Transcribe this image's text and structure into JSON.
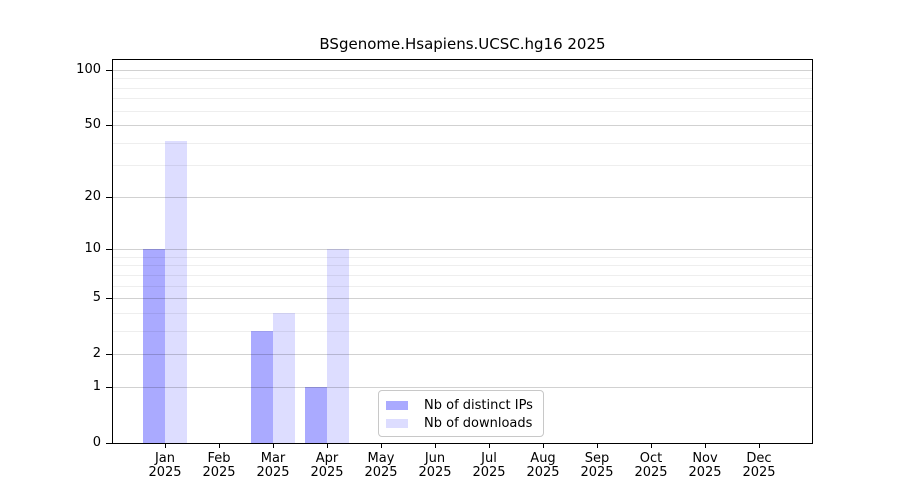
{
  "figure": {
    "title": "BSgenome.Hsapiens.UCSC.hg16 2025"
  },
  "chart_data": {
    "type": "bar",
    "title": "BSgenome.Hsapiens.UCSC.hg16 2025",
    "xlabel": "",
    "ylabel": "",
    "categories": [
      "Jan 2025",
      "Feb 2025",
      "Mar 2025",
      "Apr 2025",
      "May 2025",
      "Jun 2025",
      "Jul 2025",
      "Aug 2025",
      "Sep 2025",
      "Oct 2025",
      "Nov 2025",
      "Dec 2025"
    ],
    "x_tick_line1": [
      "Jan",
      "Feb",
      "Mar",
      "Apr",
      "May",
      "Jun",
      "Jul",
      "Aug",
      "Sep",
      "Oct",
      "Nov",
      "Dec"
    ],
    "x_tick_line2": "2025",
    "series": [
      {
        "name": "Nb of distinct IPs",
        "color": "#aaaaff",
        "values": [
          10,
          0,
          3,
          1,
          0,
          0,
          0,
          0,
          0,
          0,
          0,
          0
        ]
      },
      {
        "name": "Nb of downloads",
        "color": "#ddddff",
        "values": [
          41,
          0,
          4,
          10,
          0,
          0,
          0,
          0,
          0,
          0,
          0,
          0
        ]
      }
    ],
    "y_scale": "log1p",
    "ylim": [
      0,
      100
    ],
    "y_axis_ticks": [
      0,
      1,
      2,
      5,
      10,
      20,
      50,
      100
    ],
    "y_minor_gridlines": [
      3,
      4,
      6,
      7,
      8,
      9,
      30,
      40,
      60,
      70,
      80,
      90
    ],
    "grid": true,
    "legend_position": "bottom-center"
  }
}
